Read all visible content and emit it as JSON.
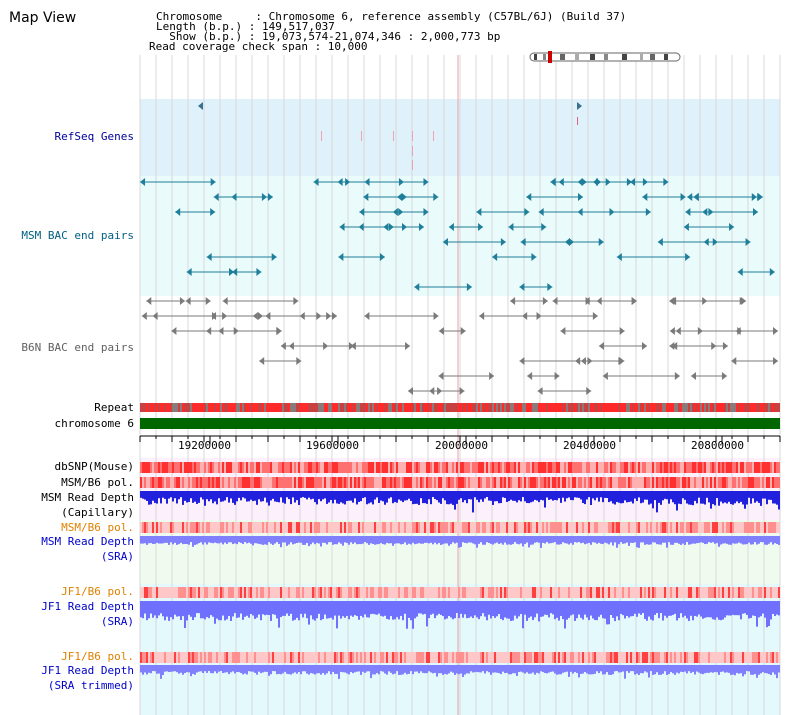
{
  "header": {
    "title": "Map View",
    "info_lines": [
      "Chromosome     : Chromosome 6, reference assembly (C57BL/6J) (Build 37)",
      "Length (b.p.) : 149,517,037",
      "  Show (b.p.) : 19,073,574-21,074,346 : 2,000,773 bp",
      "Read coverage check span : 10,000"
    ]
  },
  "tracks": {
    "refseq": "RefSeq Genes",
    "msm_bac": "MSM BAC end pairs",
    "b6n_bac": "B6N BAC end pairs",
    "repeat": "Repeat",
    "chromosome": "chromosome 6",
    "dbsnp": "dbSNP(Mouse)",
    "msm_b6_pol": "MSM/B6 pol.",
    "msm_read_depth_cap_1": "MSM Read Depth",
    "msm_read_depth_cap_2": "(Capillary)",
    "msm_b6_pol_2": "MSM/B6 pol.",
    "msm_read_depth_sra_1": "MSM Read Depth",
    "msm_read_depth_sra_2": "(SRA)",
    "jf1_b6_pol_1": "JF1/B6 pol.",
    "jf1_read_depth_1": "JF1 Read Depth",
    "jf1_read_depth_1b": "(SRA)",
    "jf1_b6_pol_2": "JF1/B6 pol.",
    "jf1_read_depth_2": "JF1 Read Depth",
    "jf1_read_depth_2b": "(SRA trimmed)"
  },
  "ruler": {
    "ticks": [
      "19200000",
      "19600000",
      "20000000",
      "20400000",
      "20800000"
    ]
  },
  "colors": {
    "refseq_label": "#000099",
    "msm_bac_label": "#006080",
    "b6n_bac_label": "#606060",
    "orange_label": "#e08000",
    "blue_label": "#0000cc",
    "chromosome_bar": "#006600",
    "depth_capillary": "#2020dd",
    "depth_sra": "#8080ff",
    "snp_red": "#ff3030"
  },
  "icons": {
    "chromosome_ideogram": "chromosome-ideogram-icon"
  }
}
